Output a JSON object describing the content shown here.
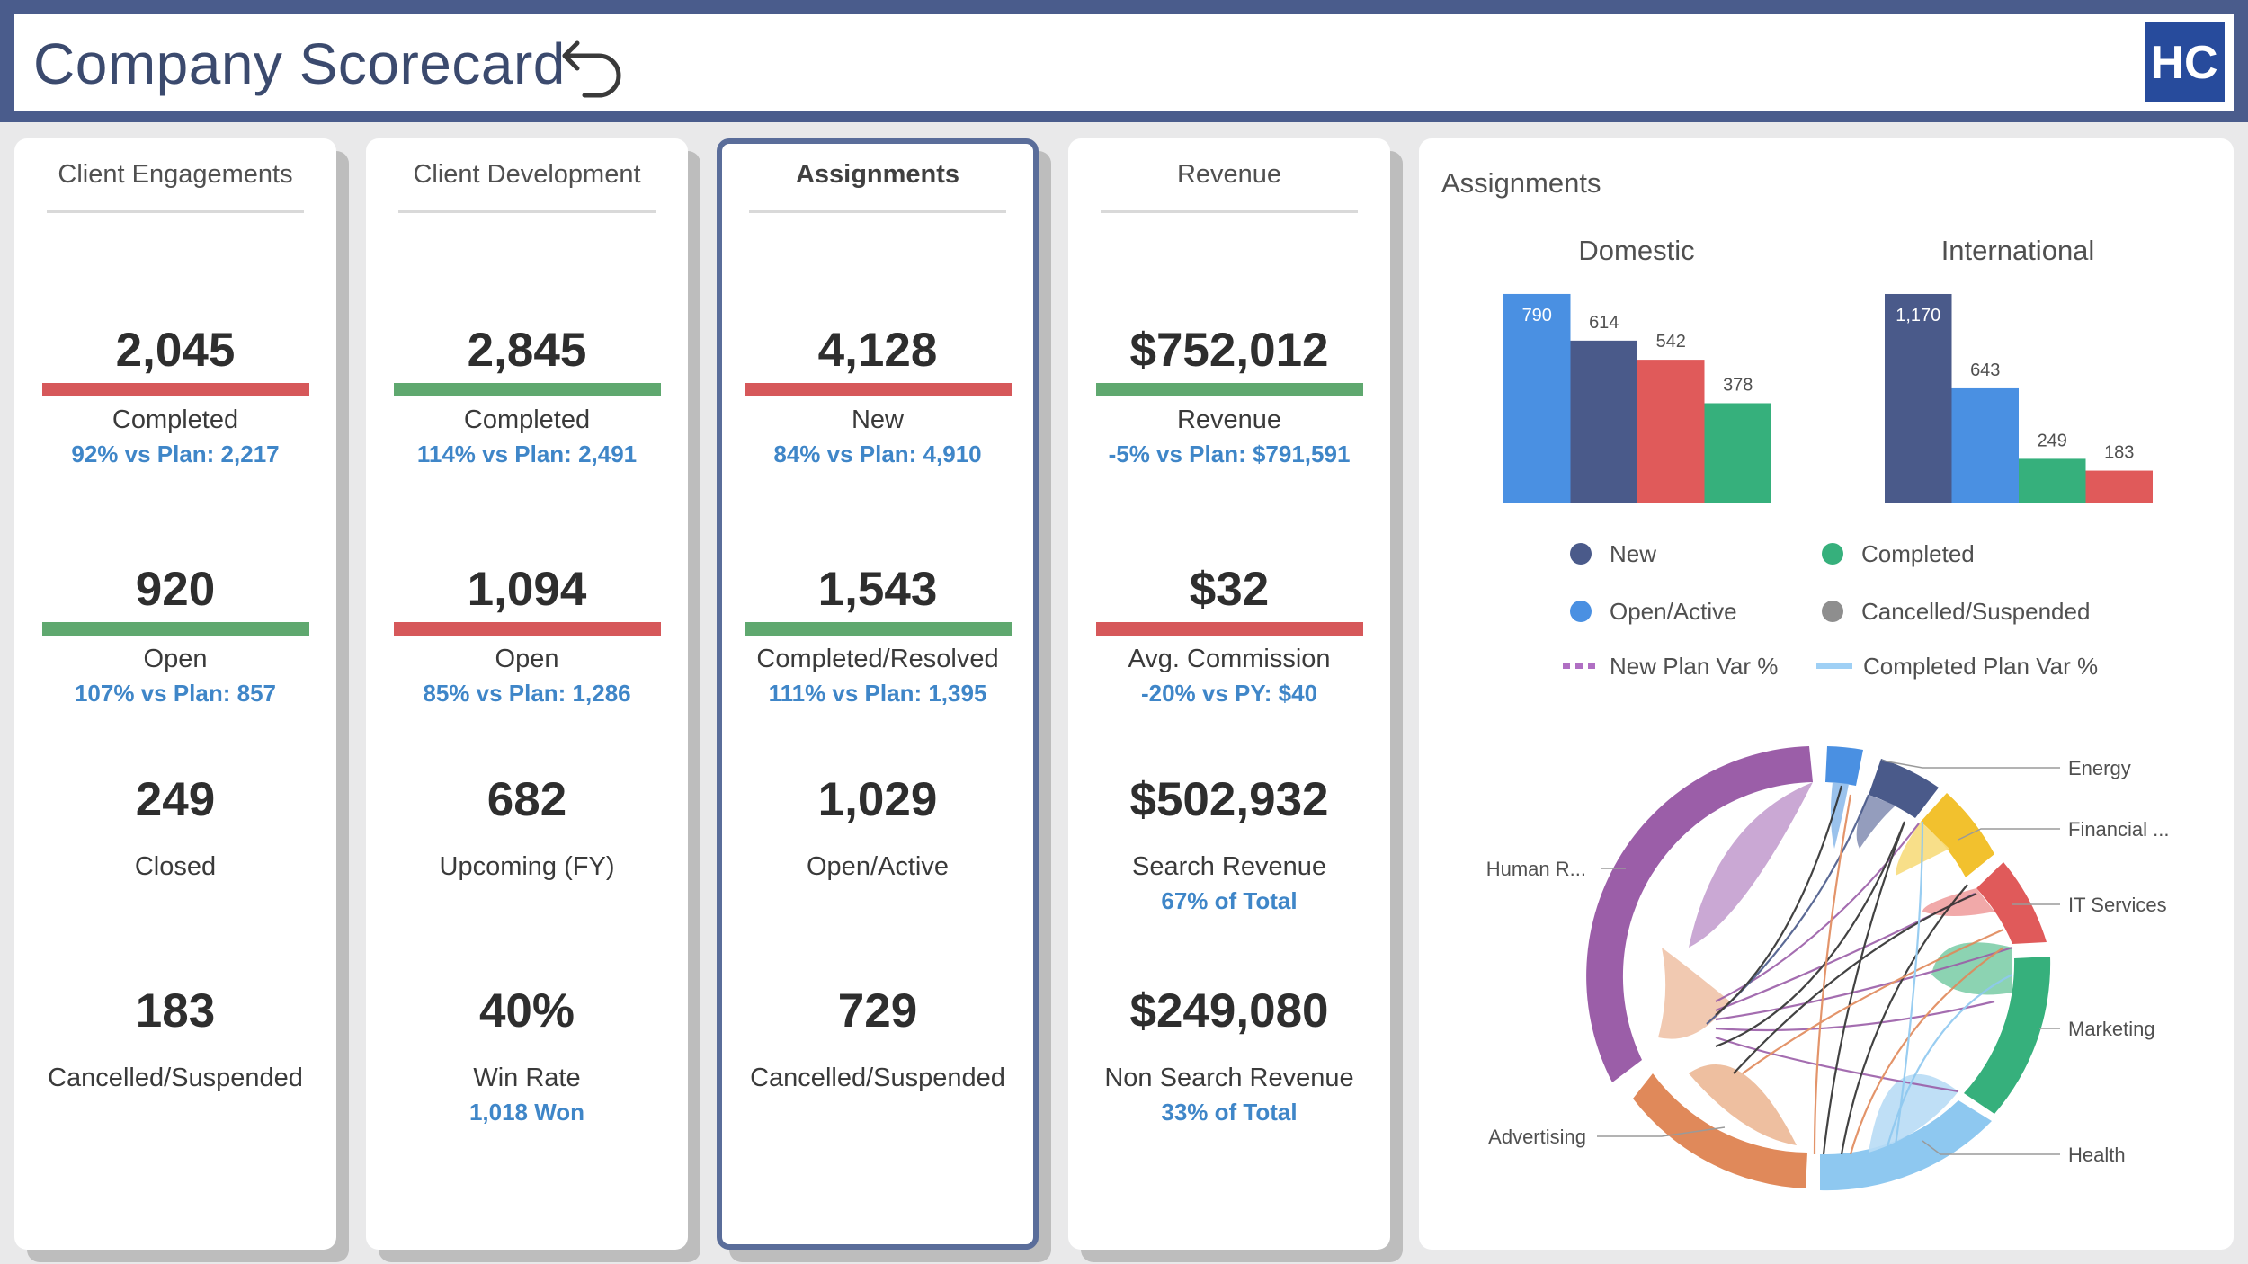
{
  "header": {
    "title": "Company Scorecard",
    "undo_icon": "undo-arrow-icon",
    "logo_text": "HC"
  },
  "colors": {
    "bar_red": "#d6585a",
    "bar_green": "#5fa86f",
    "accent_blue": "#3f86c8",
    "frame": "#4a5c8c"
  },
  "cards": {
    "client_engagements": {
      "title": "Client Engagements",
      "m1": {
        "value": "2,045",
        "label": "Completed",
        "sub": "92% vs Plan: 2,217",
        "status": "red"
      },
      "m2": {
        "value": "920",
        "label": "Open",
        "sub": "107% vs Plan: 857",
        "status": "green"
      },
      "m3": {
        "value": "249",
        "label": "Closed"
      },
      "m4": {
        "value": "183",
        "label": "Cancelled/Suspended"
      }
    },
    "client_development": {
      "title": "Client Development",
      "m1": {
        "value": "2,845",
        "label": "Completed",
        "sub": "114% vs Plan: 2,491",
        "status": "green"
      },
      "m2": {
        "value": "1,094",
        "label": "Open",
        "sub": "85% vs Plan: 1,286",
        "status": "red"
      },
      "m3": {
        "value": "682",
        "label": "Upcoming (FY)"
      },
      "m4": {
        "value": "40%",
        "label": "Win Rate",
        "sub": "1,018 Won"
      }
    },
    "assignments": {
      "title": "Assignments",
      "m1": {
        "value": "4,128",
        "label": "New",
        "sub": "84% vs Plan: 4,910",
        "status": "red"
      },
      "m2": {
        "value": "1,543",
        "label": "Completed/Resolved",
        "sub": "111% vs Plan: 1,395",
        "status": "green"
      },
      "m3": {
        "value": "1,029",
        "label": "Open/Active"
      },
      "m4": {
        "value": "729",
        "label": "Cancelled/Suspended"
      }
    },
    "revenue": {
      "title": "Revenue",
      "m1": {
        "value": "$752,012",
        "label": "Revenue",
        "sub": "-5% vs Plan: $791,591",
        "status": "green"
      },
      "m2": {
        "value": "$32",
        "label": "Avg. Commission",
        "sub": "-20% vs PY: $40",
        "status": "red"
      },
      "m3": {
        "value": "$502,932",
        "label": "Search Revenue",
        "sub": "67% of Total"
      },
      "m4": {
        "value": "$249,080",
        "label": "Non Search Revenue",
        "sub": "33% of Total"
      }
    }
  },
  "assign_chart": {
    "title": "Assignments",
    "legend": {
      "new": "New",
      "completed": "Completed",
      "open_active": "Open/Active",
      "cancelled": "Cancelled/Suspended",
      "new_plan_var": "New Plan Var %",
      "completed_plan_var": "Completed Plan Var %"
    }
  },
  "chart_data": [
    {
      "type": "bar",
      "title": "Domestic",
      "categories": [
        "Open/Active",
        "New",
        "Cancelled/Suspended",
        "Completed"
      ],
      "values": [
        790,
        614,
        542,
        378
      ],
      "colors": [
        "#4a90e2",
        "#4a5a8a",
        "#e05a5a",
        "#36b07c"
      ],
      "ylim": [
        0,
        800
      ]
    },
    {
      "type": "bar",
      "title": "International",
      "categories": [
        "New",
        "Open/Active",
        "Completed",
        "Cancelled/Suspended"
      ],
      "values": [
        1170,
        643,
        249,
        183
      ],
      "colors": [
        "#4a5a8a",
        "#4a90e2",
        "#36b07c",
        "#e05a5a"
      ],
      "ylim": [
        0,
        1185
      ]
    },
    {
      "type": "chord",
      "title": "",
      "labels": [
        "Energy",
        "Financial ...",
        "IT Services",
        "Marketing",
        "Health",
        "Advertising",
        "Human R..."
      ]
    }
  ]
}
